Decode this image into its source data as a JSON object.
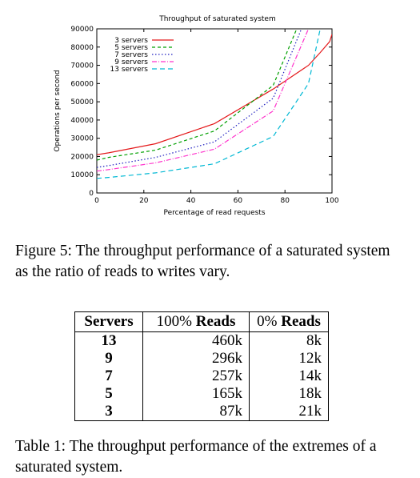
{
  "chart_data": {
    "type": "line",
    "title": "Throughput of saturated system",
    "xlabel": "Percentage of read requests",
    "ylabel": "Operations per second",
    "xlim": [
      0,
      100
    ],
    "ylim": [
      0,
      90000
    ],
    "x_ticks": [
      "0",
      "20",
      "40",
      "60",
      "80",
      "100"
    ],
    "y_ticks": [
      "0",
      "10000",
      "20000",
      "30000",
      "40000",
      "50000",
      "60000",
      "70000",
      "80000",
      "90000"
    ],
    "legend_position": "top-left",
    "series": [
      {
        "name": "3 servers",
        "color": "#e41a1c",
        "dash": "",
        "x": [
          0,
          5,
          25,
          50,
          75,
          90,
          95,
          99,
          100
        ],
        "y": [
          21000,
          22000,
          27000,
          38000,
          57000,
          70000,
          77000,
          83000,
          87000
        ]
      },
      {
        "name": "5 servers",
        "color": "#00a000",
        "dash": "4,3",
        "x": [
          0,
          5,
          25,
          50,
          75,
          85
        ],
        "y": [
          18000,
          19500,
          23500,
          34000,
          59000,
          90000
        ]
      },
      {
        "name": "7 servers",
        "color": "#2020c0",
        "dash": "1.5,2.5",
        "x": [
          0,
          5,
          25,
          50,
          75,
          87
        ],
        "y": [
          14000,
          15000,
          19500,
          28000,
          52000,
          90000
        ]
      },
      {
        "name": "9 servers",
        "color": "#ff33cc",
        "dash": "6,2,1,2",
        "x": [
          0,
          5,
          25,
          50,
          75,
          90
        ],
        "y": [
          12000,
          12800,
          16500,
          24000,
          45000,
          90000
        ]
      },
      {
        "name": "13 servers",
        "color": "#00b8d4",
        "dash": "6,4",
        "x": [
          0,
          5,
          25,
          50,
          75,
          90,
          95
        ],
        "y": [
          8000,
          8500,
          11000,
          16000,
          31000,
          60000,
          90000
        ]
      }
    ]
  },
  "figure_caption": "Figure 5: The throughput performance of a saturated system as the ratio of reads to writes vary.",
  "table": {
    "headers": [
      {
        "pre": "Servers",
        "bold": ""
      },
      {
        "pre": "100% ",
        "bold": "Reads"
      },
      {
        "pre": "0% ",
        "bold": "Reads"
      }
    ],
    "rows": [
      [
        "13",
        "460k",
        "8k"
      ],
      [
        "9",
        "296k",
        "12k"
      ],
      [
        "7",
        "257k",
        "14k"
      ],
      [
        "5",
        "165k",
        "18k"
      ],
      [
        "3",
        "87k",
        "21k"
      ]
    ]
  },
  "table_caption": "Table 1: The throughput performance of the extremes of a saturated system."
}
